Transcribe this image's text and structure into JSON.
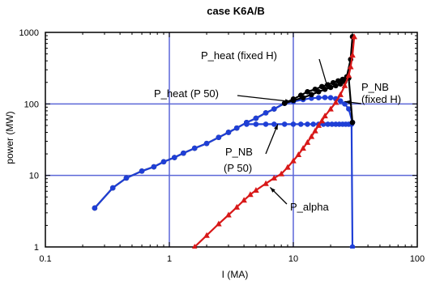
{
  "chart_data": {
    "type": "line",
    "title": "case K6A/B",
    "xlabel": "I (MA)",
    "ylabel": "power (MW)",
    "x_scale": "log",
    "y_scale": "log",
    "xlim": [
      0.1,
      100
    ],
    "ylim": [
      1,
      1000
    ],
    "x_ticks": [
      0.1,
      1,
      10,
      100
    ],
    "x_tick_labels": [
      "0.1",
      "1",
      "10",
      "100"
    ],
    "y_ticks": [
      1,
      10,
      100,
      1000
    ],
    "y_tick_labels": [
      "1",
      "10",
      "100",
      "1000"
    ],
    "grid": true,
    "colors": {
      "grid": "#5b67d8",
      "black": "#000000",
      "blue": "#1f3fd6",
      "red": "#d81818"
    },
    "series": [
      {
        "name": "P_heat (fixed H)",
        "color": "#000000",
        "marker": "circle",
        "points": [
          [
            0.25,
            3.5
          ],
          [
            0.35,
            6.7
          ],
          [
            0.45,
            9.2
          ],
          [
            0.6,
            11.5
          ],
          [
            0.75,
            13.2
          ],
          [
            0.9,
            15.5
          ],
          [
            1.1,
            17.8
          ],
          [
            1.3,
            20.5
          ],
          [
            1.6,
            24
          ],
          [
            2.0,
            28
          ],
          [
            2.5,
            34
          ],
          [
            3.0,
            40
          ],
          [
            3.5,
            46
          ],
          [
            4.2,
            55
          ],
          [
            5.0,
            63
          ],
          [
            6.0,
            75
          ],
          [
            7.0,
            85
          ],
          [
            8.5,
            102
          ],
          [
            10,
            117
          ],
          [
            11.5,
            132
          ],
          [
            13,
            148
          ],
          [
            15,
            160
          ],
          [
            17,
            175
          ],
          [
            19,
            185
          ],
          [
            21,
            198
          ],
          [
            23,
            210
          ],
          [
            25,
            220
          ],
          [
            27,
            240
          ],
          [
            29,
            420
          ],
          [
            30,
            870
          ]
        ]
      },
      {
        "name": "P_heat (P 50)",
        "color": "#1f3fd6",
        "marker": "circle",
        "points": [
          [
            0.25,
            3.5
          ],
          [
            0.35,
            6.7
          ],
          [
            0.45,
            9.2
          ],
          [
            0.6,
            11.5
          ],
          [
            0.75,
            13.2
          ],
          [
            0.9,
            15.5
          ],
          [
            1.1,
            17.8
          ],
          [
            1.3,
            20.5
          ],
          [
            1.6,
            24
          ],
          [
            2.0,
            28
          ],
          [
            2.5,
            34
          ],
          [
            3.0,
            40
          ],
          [
            3.5,
            46
          ],
          [
            4.2,
            55
          ],
          [
            5.0,
            63
          ],
          [
            6.0,
            75
          ],
          [
            7.0,
            85
          ],
          [
            8.5,
            102
          ],
          [
            10,
            108
          ],
          [
            12,
            115
          ],
          [
            14,
            120
          ],
          [
            16,
            122
          ],
          [
            18,
            123
          ],
          [
            20,
            122
          ],
          [
            22,
            118
          ],
          [
            24,
            110
          ],
          [
            26,
            100
          ],
          [
            28,
            85
          ],
          [
            30,
            55
          ]
        ]
      },
      {
        "name": "P_NB (P 50)",
        "color": "#1f3fd6",
        "marker": "circle",
        "points": [
          [
            4.2,
            52
          ],
          [
            5,
            52
          ],
          [
            6,
            52
          ],
          [
            7,
            52
          ],
          [
            8.5,
            52
          ],
          [
            10,
            52
          ],
          [
            11.5,
            52
          ],
          [
            13,
            52
          ],
          [
            14.5,
            52
          ],
          [
            16,
            52
          ],
          [
            17.5,
            52
          ],
          [
            19,
            52
          ],
          [
            20.5,
            52
          ],
          [
            22,
            52
          ],
          [
            23.5,
            52
          ],
          [
            25,
            52
          ],
          [
            26.5,
            52
          ],
          [
            28,
            52
          ],
          [
            29.5,
            52
          ],
          [
            30,
            1
          ]
        ]
      },
      {
        "name": "P_NB (fixed H)",
        "color": "#000000",
        "marker": "circle",
        "points": [
          [
            8.5,
            102
          ],
          [
            10,
            112
          ],
          [
            12,
            122
          ],
          [
            14,
            135
          ],
          [
            16,
            148
          ],
          [
            18,
            160
          ],
          [
            20,
            170
          ],
          [
            22,
            180
          ],
          [
            24,
            190
          ],
          [
            26,
            205
          ],
          [
            28,
            230
          ],
          [
            30,
            55
          ]
        ]
      },
      {
        "name": "P_alpha",
        "color": "#d81818",
        "marker": "triangle",
        "points": [
          [
            1.6,
            1
          ],
          [
            2,
            1.45
          ],
          [
            2.5,
            2.1
          ],
          [
            3,
            2.8
          ],
          [
            3.5,
            3.6
          ],
          [
            4,
            4.5
          ],
          [
            4.5,
            5.4
          ],
          [
            5,
            6.2
          ],
          [
            6,
            7.7
          ],
          [
            7,
            9.2
          ],
          [
            8,
            10.5
          ],
          [
            9,
            13
          ],
          [
            10,
            16
          ],
          [
            11,
            19.5
          ],
          [
            12,
            24
          ],
          [
            13,
            29
          ],
          [
            14,
            35
          ],
          [
            15,
            42
          ],
          [
            16,
            50
          ],
          [
            17,
            58
          ],
          [
            18,
            68
          ],
          [
            20,
            85
          ],
          [
            22,
            105
          ],
          [
            24,
            135
          ],
          [
            26,
            180
          ],
          [
            28,
            250
          ],
          [
            29,
            330
          ],
          [
            30,
            480
          ],
          [
            31,
            870
          ]
        ]
      }
    ],
    "annotations": [
      {
        "text": "P_heat (fixed H)",
        "at": [
          15,
          190
        ]
      },
      {
        "text": "P_heat (P  50)",
        "at": [
          6,
          115
        ]
      },
      {
        "text": "P_NB",
        "at": [
          28,
          112
        ]
      },
      {
        "text": "(fixed H)",
        "at": [
          30,
          70
        ]
      },
      {
        "text": "P_NB",
        "at": [
          12,
          38
        ]
      },
      {
        "text": "(P  50)",
        "at": [
          12,
          25
        ]
      },
      {
        "text": "P_alpha",
        "at": [
          13,
          4.5
        ]
      }
    ]
  }
}
